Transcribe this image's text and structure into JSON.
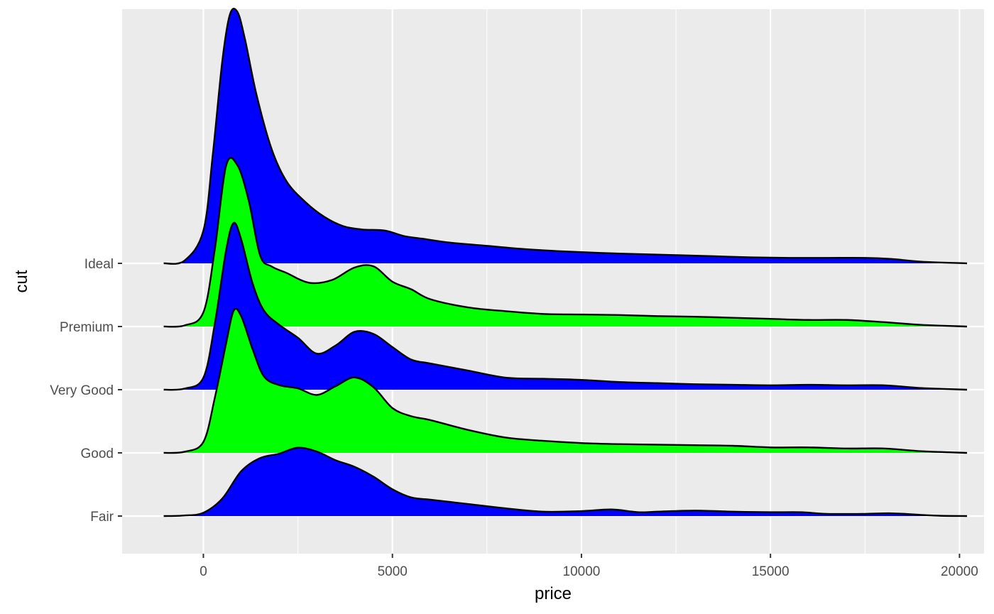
{
  "chart_data": {
    "type": "ridgeline",
    "xlabel": "price",
    "ylabel": "cut",
    "xlim": [
      -2150,
      20650
    ],
    "x_ticks": [
      0,
      5000,
      10000,
      15000,
      20000
    ],
    "x_tick_labels": [
      "0",
      "5000",
      "10000",
      "15000",
      "20000"
    ],
    "categories": [
      "Fair",
      "Good",
      "Very Good",
      "Premium",
      "Ideal"
    ],
    "grid": true,
    "colors": {
      "panel_bg": "#EBEBEB",
      "grid": "#FFFFFF",
      "outline": "#000000",
      "blue": "#0000FF",
      "green": "#00FF00"
    },
    "series": [
      {
        "category": "Fair",
        "fill": "#0000FF",
        "x": [
          -1050,
          -500,
          0,
          500,
          1000,
          1500,
          2000,
          2500,
          3000,
          3500,
          4000,
          4500,
          5000,
          5500,
          6000,
          6500,
          7000,
          8000,
          9000,
          10000,
          10800,
          11500,
          12000,
          13000,
          14000,
          15000,
          15800,
          16500,
          17500,
          18200,
          19000,
          19500,
          20200
        ],
        "y": [
          0.0,
          0.01,
          0.06,
          0.32,
          0.82,
          1.06,
          1.14,
          1.25,
          1.18,
          1.02,
          0.9,
          0.72,
          0.49,
          0.34,
          0.3,
          0.26,
          0.22,
          0.14,
          0.08,
          0.09,
          0.12,
          0.07,
          0.08,
          0.1,
          0.08,
          0.07,
          0.07,
          0.04,
          0.04,
          0.05,
          0.02,
          0.005,
          0.0
        ]
      },
      {
        "category": "Good",
        "fill": "#00FF00",
        "x": [
          -1050,
          -500,
          0,
          300,
          600,
          800,
          1000,
          1300,
          1600,
          2000,
          2500,
          3000,
          3500,
          4000,
          4500,
          5000,
          5500,
          6000,
          7000,
          8000,
          9000,
          10000,
          11000,
          12000,
          13000,
          14000,
          15000,
          16000,
          17000,
          18000,
          19000,
          20200
        ],
        "y": [
          0.0,
          0.02,
          0.2,
          1.0,
          2.0,
          2.6,
          2.5,
          1.9,
          1.4,
          1.24,
          1.18,
          1.06,
          1.22,
          1.38,
          1.2,
          0.82,
          0.67,
          0.6,
          0.42,
          0.28,
          0.22,
          0.18,
          0.16,
          0.15,
          0.14,
          0.13,
          0.1,
          0.1,
          0.08,
          0.08,
          0.03,
          0.0
        ]
      },
      {
        "category": "Very Good",
        "fill": "#0000FF",
        "x": [
          -1050,
          -500,
          0,
          300,
          600,
          800,
          1000,
          1300,
          1600,
          2000,
          2500,
          3000,
          3500,
          4000,
          4500,
          5000,
          5500,
          6000,
          7000,
          8000,
          9000,
          10000,
          11000,
          12000,
          13000,
          14000,
          15000,
          16000,
          17000,
          18000,
          19000,
          20200
        ],
        "y": [
          0.0,
          0.02,
          0.22,
          1.2,
          2.55,
          3.05,
          2.75,
          1.95,
          1.45,
          1.19,
          0.95,
          0.66,
          0.81,
          1.06,
          1.02,
          0.78,
          0.55,
          0.48,
          0.35,
          0.22,
          0.2,
          0.18,
          0.14,
          0.12,
          0.1,
          0.09,
          0.08,
          0.09,
          0.08,
          0.08,
          0.03,
          0.0
        ]
      },
      {
        "category": "Premium",
        "fill": "#00FF00",
        "x": [
          -1050,
          -500,
          0,
          300,
          600,
          900,
          1200,
          1500,
          1800,
          2200,
          2800,
          3400,
          4000,
          4500,
          5000,
          5500,
          6000,
          7000,
          8000,
          9000,
          10000,
          11000,
          12000,
          13000,
          14000,
          15000,
          16000,
          17000,
          18000,
          19000,
          20200
        ],
        "y": [
          0.0,
          0.02,
          0.26,
          1.4,
          2.94,
          2.95,
          2.3,
          1.3,
          1.1,
          0.98,
          0.8,
          0.85,
          1.08,
          1.1,
          0.82,
          0.68,
          0.5,
          0.35,
          0.28,
          0.23,
          0.22,
          0.21,
          0.19,
          0.18,
          0.16,
          0.14,
          0.12,
          0.12,
          0.08,
          0.03,
          0.0
        ]
      },
      {
        "category": "Ideal",
        "fill": "#0000FF",
        "x": [
          -1050,
          -500,
          0,
          250,
          500,
          700,
          900,
          1100,
          1400,
          1800,
          2200,
          2700,
          3200,
          3700,
          4200,
          4800,
          5300,
          5800,
          6500,
          7500,
          8500,
          9500,
          10500,
          11500,
          12500,
          13500,
          14500,
          15500,
          16500,
          17500,
          18200,
          19000,
          20200
        ],
        "y": [
          0.0,
          0.05,
          0.6,
          2.0,
          3.7,
          4.55,
          4.6,
          4.1,
          3.1,
          2.1,
          1.5,
          1.12,
          0.85,
          0.68,
          0.62,
          0.6,
          0.5,
          0.45,
          0.38,
          0.32,
          0.26,
          0.22,
          0.19,
          0.17,
          0.15,
          0.13,
          0.11,
          0.1,
          0.1,
          0.1,
          0.08,
          0.03,
          0.0
        ]
      }
    ]
  }
}
